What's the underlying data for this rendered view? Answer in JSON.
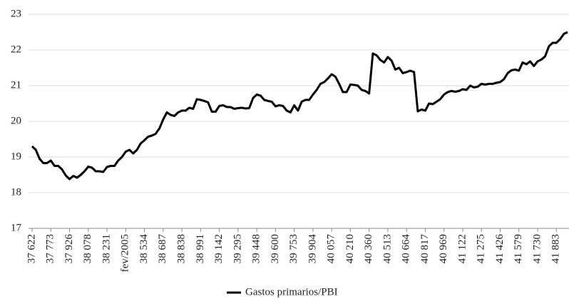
{
  "chart_data": {
    "type": "line",
    "categories": [
      "37 622",
      null,
      null,
      null,
      null,
      "37 773",
      null,
      null,
      null,
      null,
      "37 926",
      null,
      null,
      null,
      null,
      "38 078",
      null,
      null,
      null,
      null,
      "38 231",
      null,
      null,
      null,
      null,
      "fev/2005",
      null,
      null,
      null,
      null,
      "38 534",
      null,
      null,
      null,
      null,
      "38 687",
      null,
      null,
      null,
      null,
      "38 838",
      null,
      null,
      null,
      null,
      "38 991",
      null,
      null,
      null,
      null,
      "39 142",
      null,
      null,
      null,
      null,
      "39 295",
      null,
      null,
      null,
      null,
      "39 448",
      null,
      null,
      null,
      null,
      "39 600",
      null,
      null,
      null,
      null,
      "39 753",
      null,
      null,
      null,
      null,
      "39 904",
      null,
      null,
      null,
      null,
      "40 057",
      null,
      null,
      null,
      null,
      "40 210",
      null,
      null,
      null,
      null,
      "40 360",
      null,
      null,
      null,
      null,
      "40 513",
      null,
      null,
      null,
      null,
      "40 664",
      null,
      null,
      null,
      null,
      "40 817",
      null,
      null,
      null,
      null,
      "40 969",
      null,
      null,
      null,
      null,
      "41 122",
      null,
      null,
      null,
      null,
      "41 275",
      null,
      null,
      null,
      null,
      "41 426",
      null,
      null,
      null,
      null,
      "41 579",
      null,
      null,
      null,
      null,
      "41 730",
      null,
      null,
      null,
      null,
      "41 883",
      null,
      null,
      null
    ],
    "series": [
      {
        "name": "Gastos primarios/PBI",
        "color": "#000000",
        "values": [
          19.3,
          19.2,
          18.95,
          18.83,
          18.83,
          18.9,
          18.75,
          18.75,
          18.65,
          18.48,
          18.38,
          18.47,
          18.42,
          18.5,
          18.6,
          18.73,
          18.7,
          18.6,
          18.6,
          18.58,
          18.72,
          18.75,
          18.75,
          18.9,
          19.0,
          19.15,
          19.2,
          19.1,
          19.2,
          19.38,
          19.47,
          19.57,
          19.6,
          19.65,
          19.8,
          20.05,
          20.25,
          20.18,
          20.15,
          20.25,
          20.3,
          20.3,
          20.38,
          20.35,
          20.62,
          20.6,
          20.57,
          20.53,
          20.27,
          20.27,
          20.43,
          20.45,
          20.4,
          20.4,
          20.35,
          20.37,
          20.38,
          20.36,
          20.37,
          20.65,
          20.75,
          20.72,
          20.6,
          20.57,
          20.55,
          20.42,
          20.45,
          20.43,
          20.3,
          20.25,
          20.45,
          20.3,
          20.55,
          20.6,
          20.6,
          20.75,
          20.88,
          21.05,
          21.1,
          21.2,
          21.32,
          21.25,
          21.05,
          20.82,
          20.82,
          21.03,
          21.02,
          21.0,
          20.88,
          20.85,
          20.78,
          21.9,
          21.85,
          21.72,
          21.65,
          21.8,
          21.7,
          21.45,
          21.5,
          21.35,
          21.38,
          21.42,
          21.38,
          20.28,
          20.33,
          20.3,
          20.5,
          20.48,
          20.55,
          20.62,
          20.75,
          20.82,
          20.85,
          20.83,
          20.85,
          20.9,
          20.88,
          21.0,
          20.95,
          20.97,
          21.05,
          21.03,
          21.05,
          21.05,
          21.08,
          21.1,
          21.18,
          21.35,
          21.43,
          21.45,
          21.42,
          21.65,
          21.6,
          21.68,
          21.55,
          21.68,
          21.73,
          21.82,
          22.1,
          22.2,
          22.2,
          22.3,
          22.45,
          22.5
        ]
      }
    ],
    "ylim": [
      17,
      23
    ],
    "yticks": [
      17,
      18,
      19,
      20,
      21,
      22,
      23
    ],
    "grid": true,
    "legend": "bottom"
  }
}
